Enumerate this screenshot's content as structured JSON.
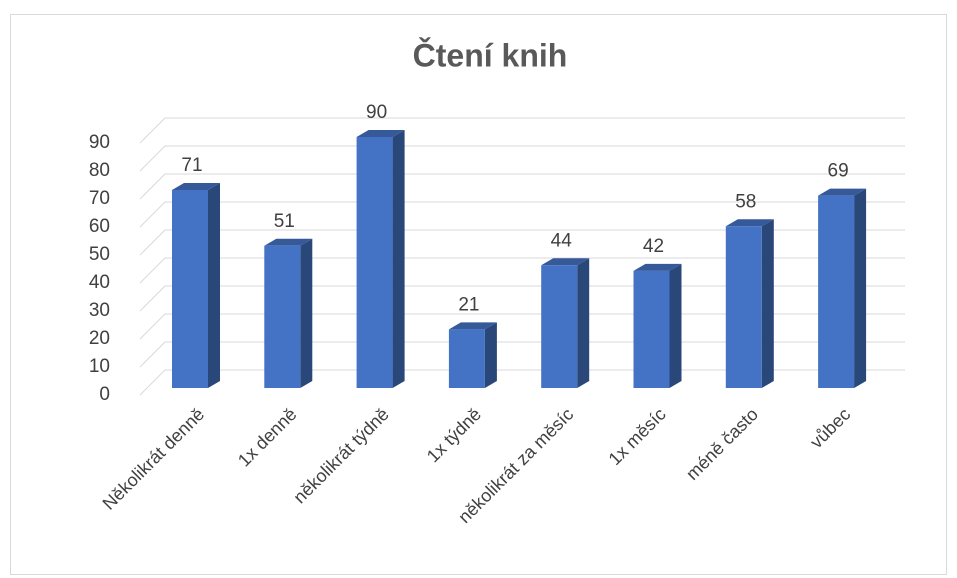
{
  "chart_data": {
    "type": "bar3d",
    "title": "Čtení knih",
    "categories": [
      "Několikrát denně",
      "1x denně",
      "několikrát týdně",
      "1x týdně",
      "několikrát za měsíc",
      "1x měsíc",
      "méně často",
      "vůbec"
    ],
    "values": [
      71,
      51,
      90,
      21,
      44,
      42,
      58,
      69
    ],
    "color": "#4472c4",
    "ylim": [
      0,
      90
    ],
    "yticks": [
      0,
      10,
      20,
      30,
      40,
      50,
      60,
      70,
      80,
      90
    ],
    "grid": true
  }
}
